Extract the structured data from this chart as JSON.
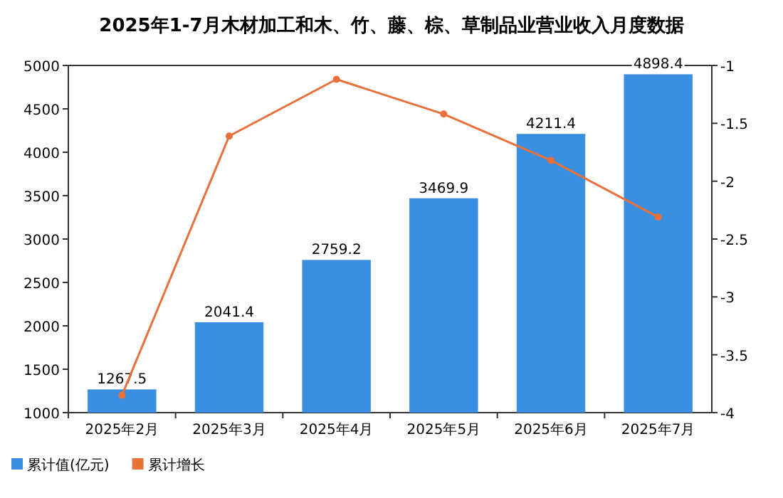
{
  "chart_data": {
    "type": "bar",
    "title": "2025年1-7月木材加工和木、竹、藤、棕、草制品业营业收入月度数据",
    "categories": [
      "2025年2月",
      "2025年3月",
      "2025年4月",
      "2025年5月",
      "2025年6月",
      "2025年7月"
    ],
    "series": [
      {
        "name": "累计值(亿元)",
        "color": "#3a8fe0",
        "values": [
          1267.5,
          2041.4,
          2759.2,
          3469.9,
          4211.4,
          4898.4
        ],
        "value_labels": [
          "1267.5",
          "2041.4",
          "2759.2",
          "3469.9",
          "4211.4",
          "4898.4"
        ]
      },
      {
        "name": "累计增长",
        "type": "line",
        "axis": "y2",
        "color": "#e8703a",
        "values": [
          -3.85,
          -1.61,
          -1.12,
          -1.42,
          -1.82,
          -2.31
        ]
      }
    ],
    "ylim": [
      1000,
      5000
    ],
    "yticks": [
      1000,
      1500,
      2000,
      2500,
      3000,
      3500,
      4000,
      4500,
      5000
    ],
    "y2lim": [
      -4,
      -1
    ],
    "y2ticks": [
      -4,
      -3.5,
      -3,
      -2.5,
      -2,
      -1.5,
      -1
    ],
    "marker": "circle",
    "legend": "bottom left",
    "grid": false
  }
}
